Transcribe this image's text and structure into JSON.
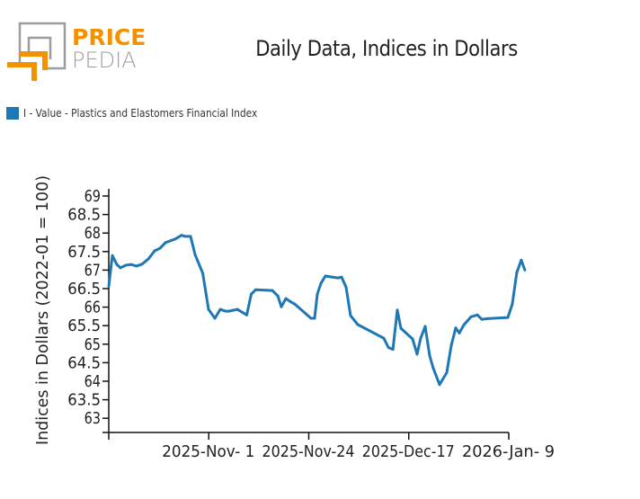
{
  "header": {
    "logo_text_top": "PRICE",
    "logo_text_bottom": "PEDIA",
    "title": "Daily Data, Indices in Dollars"
  },
  "legend": {
    "items": [
      {
        "label": "I - Value - Plastics and Elastomers Financial Index",
        "color": "#1f77b4"
      }
    ]
  },
  "colors": {
    "brand_orange": "#f39200",
    "brand_gray": "#9d9d9c",
    "series": "#1f77b4"
  },
  "chart_data": {
    "type": "line",
    "title": "Daily Data, Indices in Dollars",
    "xlabel": "",
    "ylabel": "Indices in Dollars (2022-01 = 100)",
    "ylim": [
      62.6,
      69.1
    ],
    "yticks": [
      69,
      68.5,
      68,
      67.5,
      67,
      66.5,
      66,
      65.5,
      65,
      64.5,
      64,
      63.5,
      63
    ],
    "ytick_labels": [
      "69",
      "68.5",
      "68",
      "67.5",
      "67",
      "66.5",
      "66",
      "65.5",
      "65",
      "64.5",
      "64",
      "63.5",
      "63"
    ],
    "xlim": [
      0,
      4
    ],
    "xticks": [
      0,
      1,
      2,
      3,
      4
    ],
    "xtick_labels": [
      "",
      "2025-Nov- 1",
      "2025-Nov-24",
      "2025-Dec-17",
      "2026-Jan- 9"
    ],
    "grid": false,
    "legend_position": "top-left",
    "series": [
      {
        "name": "I - Value - Plastics and Elastomers Financial Index",
        "x": [
          0.0,
          0.036,
          0.081,
          0.117,
          0.171,
          0.225,
          0.279,
          0.333,
          0.396,
          0.458,
          0.512,
          0.566,
          0.665,
          0.728,
          0.764,
          0.818,
          0.863,
          0.94,
          0.998,
          1.062,
          1.115,
          1.168,
          1.2,
          1.285,
          1.38,
          1.425,
          1.47,
          1.636,
          1.691,
          1.726,
          1.771,
          1.816,
          1.861,
          2.022,
          2.058,
          2.085,
          2.121,
          2.166,
          2.292,
          2.328,
          2.373,
          2.418,
          2.49,
          2.751,
          2.796,
          2.841,
          2.885,
          2.921,
          3.038,
          3.083,
          3.119,
          3.164,
          3.209,
          3.245,
          3.308,
          3.38,
          3.425,
          3.47,
          3.506,
          3.551,
          3.623,
          3.686,
          3.731,
          3.785,
          3.991,
          4.035,
          4.08,
          4.125,
          4.161
        ],
        "values": [
          66.56,
          67.39,
          67.15,
          67.06,
          67.13,
          67.15,
          67.11,
          67.16,
          67.3,
          67.52,
          67.59,
          67.74,
          67.84,
          67.94,
          67.91,
          67.91,
          67.42,
          66.91,
          65.94,
          65.7,
          65.94,
          65.89,
          65.89,
          65.94,
          65.79,
          66.35,
          66.47,
          66.45,
          66.3,
          66.01,
          66.23,
          66.15,
          66.08,
          65.7,
          65.7,
          66.35,
          66.64,
          66.84,
          66.79,
          66.81,
          66.54,
          65.77,
          65.53,
          65.16,
          64.91,
          64.86,
          65.92,
          65.43,
          65.14,
          64.73,
          65.16,
          65.48,
          64.69,
          64.35,
          63.91,
          64.23,
          64.96,
          65.44,
          65.3,
          65.52,
          65.74,
          65.79,
          65.67,
          65.69,
          65.72,
          66.08,
          66.93,
          67.27,
          67.0
        ]
      }
    ]
  }
}
